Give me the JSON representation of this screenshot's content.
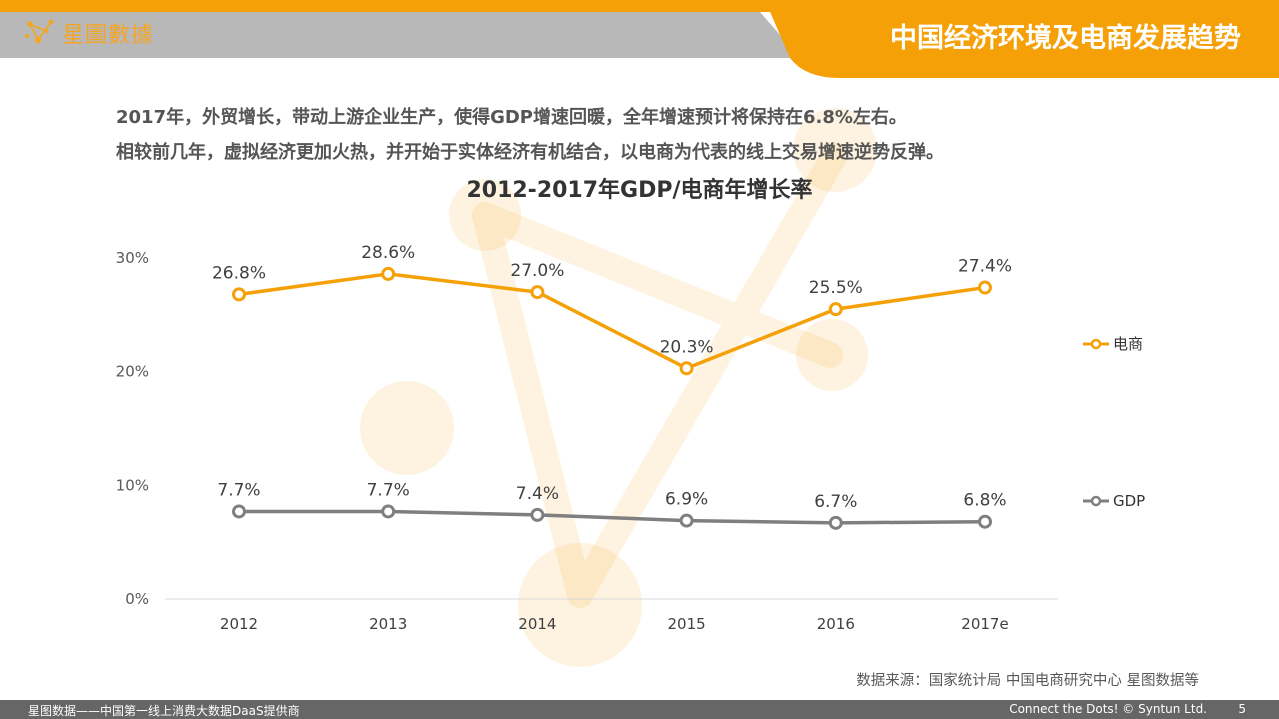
{
  "brand": {
    "logo_text": "星圖數據"
  },
  "header": {
    "title": "中国经济环境及电商发展趋势"
  },
  "intro": {
    "line1": "2017年，外贸增长，带动上游企业生产，使得GDP增速回暖，全年增速预计将保持在6.8%左右。",
    "line2": "相较前几年，虚拟经济更加火热，并开始于实体经济有机结合，以电商为代表的线上交易增速逆势反弹。"
  },
  "chart_data": {
    "type": "line",
    "title": "2012-2017年GDP/电商年增长率",
    "categories": [
      "2012",
      "2013",
      "2014",
      "2015",
      "2016",
      "2017e"
    ],
    "yticks": [
      "0%",
      "10%",
      "20%",
      "30%"
    ],
    "ylim": [
      0,
      30
    ],
    "grid": false,
    "legend_position": "right",
    "series": [
      {
        "name": "电商",
        "values": [
          26.8,
          28.6,
          27.0,
          20.3,
          25.5,
          27.4
        ],
        "labels": [
          "26.8%",
          "28.6%",
          "27.0%",
          "20.3%",
          "25.5%",
          "27.4%"
        ],
        "color": "#F5A007"
      },
      {
        "name": "GDP",
        "values": [
          7.7,
          7.7,
          7.4,
          6.9,
          6.7,
          6.8
        ],
        "labels": [
          "7.7%",
          "7.7%",
          "7.4%",
          "6.9%",
          "6.7%",
          "6.8%"
        ],
        "color": "#7F7F7F"
      }
    ]
  },
  "source": "数据来源：国家统计局  中国电商研究中心  星图数据等",
  "footer": {
    "left": "星图数据——中国第一线上消费大数据DaaS提供商",
    "right": "Connect the Dots! © Syntun Ltd.",
    "page": "5"
  },
  "colors": {
    "accent": "#F5A007",
    "header_gray": "#B0B0B0",
    "gdp_gray": "#7F7F7F",
    "footer_gray": "#666666"
  }
}
